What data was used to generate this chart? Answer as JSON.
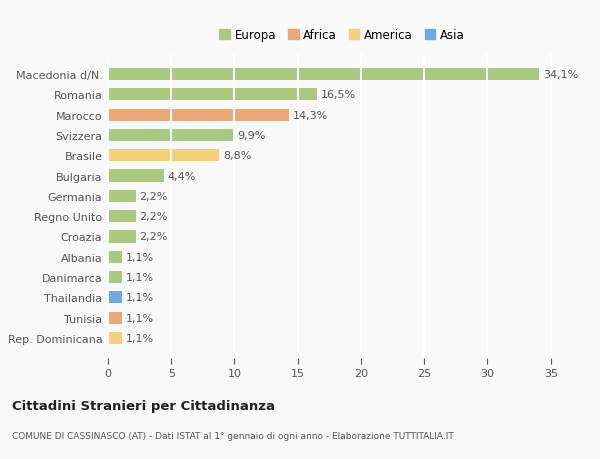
{
  "categories": [
    "Macedonia d/N.",
    "Romania",
    "Marocco",
    "Svizzera",
    "Brasile",
    "Bulgaria",
    "Germania",
    "Regno Unito",
    "Croazia",
    "Albania",
    "Danimarca",
    "Thailandia",
    "Tunisia",
    "Rep. Dominicana"
  ],
  "values": [
    34.1,
    16.5,
    14.3,
    9.9,
    8.8,
    4.4,
    2.2,
    2.2,
    2.2,
    1.1,
    1.1,
    1.1,
    1.1,
    1.1
  ],
  "labels": [
    "34,1%",
    "16,5%",
    "14,3%",
    "9,9%",
    "8,8%",
    "4,4%",
    "2,2%",
    "2,2%",
    "2,2%",
    "1,1%",
    "1,1%",
    "1,1%",
    "1,1%",
    "1,1%"
  ],
  "continents": [
    "Europa",
    "Europa",
    "Africa",
    "Europa",
    "America",
    "Europa",
    "Europa",
    "Europa",
    "Europa",
    "Europa",
    "Europa",
    "Asia",
    "Africa",
    "America"
  ],
  "colors": {
    "Europa": "#a8c97f",
    "Africa": "#e8a87c",
    "America": "#f5d07a",
    "Asia": "#6fa8dc"
  },
  "legend_labels": [
    "Europa",
    "Africa",
    "America",
    "Asia"
  ],
  "legend_colors": [
    "#a8c97f",
    "#e8a87c",
    "#f5d07a",
    "#6fa8dc"
  ],
  "title": "Cittadini Stranieri per Cittadinanza",
  "subtitle": "COMUNE DI CASSINASCO (AT) - Dati ISTAT al 1° gennaio di ogni anno - Elaborazione TUTTITALIA.IT",
  "xlim": [
    0,
    37
  ],
  "xticks": [
    0,
    5,
    10,
    15,
    20,
    25,
    30,
    35
  ],
  "background_color": "#f9f9f9",
  "bar_height": 0.6,
  "grid_color": "#ffffff",
  "label_fontsize": 8.0,
  "tick_fontsize": 8.0
}
